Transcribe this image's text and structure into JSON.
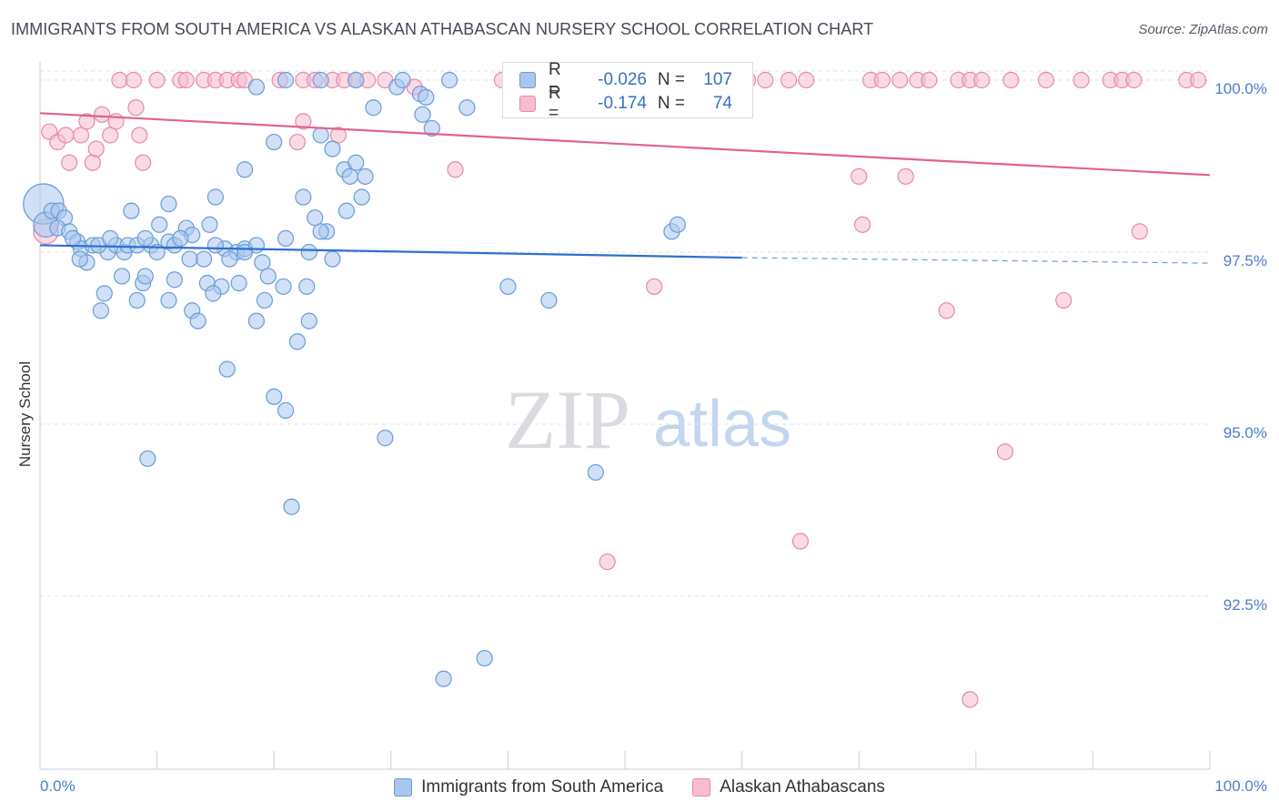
{
  "header": {
    "title": "IMMIGRANTS FROM SOUTH AMERICA VS ALASKAN ATHABASCAN NURSERY SCHOOL CORRELATION CHART",
    "source": "Source: ZipAtlas.com"
  },
  "watermark": {
    "zip": "ZIP",
    "atlas": "atlas"
  },
  "stats": {
    "series1": {
      "r_label": "R =",
      "r_value": "-0.026",
      "n_label": "N =",
      "n_value": "107"
    },
    "series2": {
      "r_label": "R =",
      "r_value": "-0.174",
      "n_label": "N =",
      "n_value": "74"
    }
  },
  "legend": {
    "series1": "Immigrants from South America",
    "series2": "Alaskan Athabascans"
  },
  "colors": {
    "blue_fill": "#a9c6ee",
    "blue_stroke": "#6b9bd8",
    "blue_line": "#2f6fcf",
    "pink_fill": "#f6bcd0",
    "pink_stroke": "#e889a8",
    "pink_line": "#e0628e",
    "grid": "#dde1e7",
    "axis": "#c9ced6"
  },
  "chart_data": {
    "type": "scatter",
    "title": "IMMIGRANTS FROM SOUTH AMERICA VS ALASKAN ATHABASCAN NURSERY SCHOOL CORRELATION CHART",
    "xlabel": "",
    "ylabel": "Nursery School",
    "xlim": [
      0,
      100
    ],
    "ylim": [
      90.2,
      100.3
    ],
    "x_tick_labels": [
      "0.0%",
      "100.0%"
    ],
    "y_ticks": [
      {
        "value": 100.0,
        "label": "100.0%"
      },
      {
        "value": 97.5,
        "label": "97.5%"
      },
      {
        "value": 95.0,
        "label": "95.0%"
      },
      {
        "value": 92.5,
        "label": "92.5%"
      }
    ],
    "grid": "horizontal dashed",
    "legend_position": "bottom",
    "series": [
      {
        "name": "Immigrants from South America",
        "color": "#a9c6ee",
        "trend": {
          "x": [
            0,
            60
          ],
          "y": [
            97.6,
            97.42
          ],
          "dashed_to": [
            100,
            97.34
          ]
        },
        "points": [
          [
            0.3,
            98.2,
            2.6
          ],
          [
            0.5,
            97.9,
            1.6
          ],
          [
            1.0,
            98.1,
            1.0
          ],
          [
            1.6,
            98.1,
            1.0
          ],
          [
            2.1,
            98.0,
            1.0
          ],
          [
            1.5,
            97.85,
            1.0
          ],
          [
            2.5,
            97.8,
            1.0
          ],
          [
            3.2,
            97.65,
            1.0
          ],
          [
            3.5,
            97.55,
            1.0
          ],
          [
            4.5,
            97.6,
            1.0
          ],
          [
            5.8,
            97.5,
            1.0
          ],
          [
            6.5,
            97.6,
            1.0
          ],
          [
            7.2,
            97.5,
            1.0
          ],
          [
            7.5,
            97.6,
            1.0
          ],
          [
            4.0,
            97.35,
            1.0
          ],
          [
            3.4,
            97.4,
            1.0
          ],
          [
            8.3,
            97.6,
            1.0
          ],
          [
            9.5,
            97.6,
            1.0
          ],
          [
            10.2,
            97.9,
            1.0
          ],
          [
            11.0,
            97.65,
            1.0
          ],
          [
            11.5,
            97.6,
            1.0
          ],
          [
            12.5,
            97.85,
            1.0
          ],
          [
            13.0,
            97.75,
            1.0
          ],
          [
            14.5,
            97.9,
            1.0
          ],
          [
            15.8,
            97.55,
            1.0
          ],
          [
            16.8,
            97.5,
            1.0
          ],
          [
            17.5,
            97.55,
            1.0
          ],
          [
            18.5,
            97.6,
            1.0
          ],
          [
            19.0,
            97.35,
            1.0
          ],
          [
            16.2,
            97.4,
            1.0
          ],
          [
            14.0,
            97.4,
            1.0
          ],
          [
            12.8,
            97.4,
            1.0
          ],
          [
            7.0,
            97.15,
            1.0
          ],
          [
            8.8,
            97.05,
            1.0
          ],
          [
            9.0,
            97.15,
            1.0
          ],
          [
            11.5,
            97.1,
            1.0
          ],
          [
            14.3,
            97.05,
            1.0
          ],
          [
            15.5,
            97.0,
            1.0
          ],
          [
            17.0,
            97.05,
            1.0
          ],
          [
            19.5,
            97.15,
            1.0
          ],
          [
            20.8,
            97.0,
            1.0
          ],
          [
            22.8,
            97.0,
            1.0
          ],
          [
            5.5,
            96.9,
            1.0
          ],
          [
            8.3,
            96.8,
            1.0
          ],
          [
            11.0,
            96.8,
            1.0
          ],
          [
            14.8,
            96.9,
            1.0
          ],
          [
            19.2,
            96.8,
            1.0
          ],
          [
            13.0,
            96.65,
            1.0
          ],
          [
            13.5,
            96.5,
            1.0
          ],
          [
            18.5,
            96.5,
            1.0
          ],
          [
            5.2,
            96.65,
            1.0
          ],
          [
            23.0,
            96.5,
            1.0
          ],
          [
            22.0,
            96.2,
            1.0
          ],
          [
            16.0,
            95.8,
            1.0
          ],
          [
            20.0,
            95.4,
            1.0
          ],
          [
            21.0,
            95.2,
            1.0
          ],
          [
            9.2,
            94.5,
            1.0
          ],
          [
            21.5,
            93.8,
            1.0
          ],
          [
            29.5,
            94.8,
            1.0
          ],
          [
            40.0,
            97.0,
            1.0
          ],
          [
            43.5,
            96.8,
            1.0
          ],
          [
            47.5,
            94.3,
            1.0
          ],
          [
            54.0,
            97.8,
            1.0
          ],
          [
            54.5,
            97.9,
            1.0
          ],
          [
            38.0,
            91.6,
            1.0
          ],
          [
            34.5,
            91.3,
            1.0
          ],
          [
            7.8,
            98.1,
            1.0
          ],
          [
            11.0,
            98.2,
            1.0
          ],
          [
            15.0,
            98.3,
            1.0
          ],
          [
            17.5,
            98.7,
            1.0
          ],
          [
            20.0,
            99.1,
            1.0
          ],
          [
            22.5,
            98.3,
            1.0
          ],
          [
            24.0,
            99.2,
            1.0
          ],
          [
            25.0,
            99.0,
            1.0
          ],
          [
            26.0,
            98.7,
            1.0
          ],
          [
            26.5,
            98.6,
            1.0
          ],
          [
            27.0,
            98.8,
            1.0
          ],
          [
            27.5,
            98.3,
            1.0
          ],
          [
            27.8,
            98.6,
            1.0
          ],
          [
            26.2,
            98.1,
            1.0
          ],
          [
            24.5,
            97.8,
            1.0
          ],
          [
            24.0,
            97.8,
            1.0
          ],
          [
            21.0,
            97.7,
            1.0
          ],
          [
            23.0,
            97.5,
            1.0
          ],
          [
            25.0,
            97.4,
            1.0
          ],
          [
            28.5,
            99.6,
            1.0
          ],
          [
            30.5,
            99.9,
            1.0
          ],
          [
            32.5,
            99.8,
            1.0
          ],
          [
            32.7,
            99.5,
            1.0
          ],
          [
            33.0,
            99.75,
            1.0
          ],
          [
            33.5,
            99.3,
            1.0
          ],
          [
            36.5,
            99.6,
            1.0
          ],
          [
            35.0,
            100.0,
            1.0
          ],
          [
            27.0,
            100.0,
            1.0
          ],
          [
            24.0,
            100.0,
            1.0
          ],
          [
            18.5,
            99.9,
            1.0
          ],
          [
            21.0,
            100.0,
            1.0
          ],
          [
            31.0,
            100.0,
            1.0
          ],
          [
            2.8,
            97.7,
            1.0
          ],
          [
            5.0,
            97.6,
            1.0
          ],
          [
            6.0,
            97.7,
            1.0
          ],
          [
            9.0,
            97.7,
            1.0
          ],
          [
            12.0,
            97.7,
            1.0
          ],
          [
            17.5,
            97.5,
            1.0
          ],
          [
            15.0,
            97.6,
            1.0
          ],
          [
            23.5,
            98.0,
            1.0
          ],
          [
            10.0,
            97.5,
            1.0
          ]
        ]
      },
      {
        "name": "Alaskan Athabascans",
        "color": "#f6bcd0",
        "trend": {
          "x": [
            0,
            100
          ],
          "y": [
            99.52,
            98.62
          ]
        },
        "points": [
          [
            0.5,
            97.8,
            1.6
          ],
          [
            0.8,
            99.25,
            1.0
          ],
          [
            1.5,
            99.1,
            1.0
          ],
          [
            2.2,
            99.2,
            1.0
          ],
          [
            2.5,
            98.8,
            1.0
          ],
          [
            3.5,
            99.2,
            1.0
          ],
          [
            4.0,
            99.4,
            1.0
          ],
          [
            4.5,
            98.8,
            1.0
          ],
          [
            4.8,
            99.0,
            1.0
          ],
          [
            5.3,
            99.5,
            1.0
          ],
          [
            6.0,
            99.2,
            1.0
          ],
          [
            6.5,
            99.4,
            1.0
          ],
          [
            8.5,
            99.2,
            1.0
          ],
          [
            8.8,
            98.8,
            1.0
          ],
          [
            8.2,
            99.6,
            1.0
          ],
          [
            22.0,
            99.1,
            1.0
          ],
          [
            22.5,
            99.4,
            1.0
          ],
          [
            25.5,
            99.2,
            1.0
          ],
          [
            35.5,
            98.7,
            1.0
          ],
          [
            70.0,
            98.6,
            1.0
          ],
          [
            74.0,
            98.6,
            1.0
          ],
          [
            70.3,
            97.9,
            1.0
          ],
          [
            94.0,
            97.8,
            1.0
          ],
          [
            52.5,
            97.0,
            1.0
          ],
          [
            77.5,
            96.65,
            1.0
          ],
          [
            87.5,
            96.8,
            1.0
          ],
          [
            82.5,
            94.6,
            1.0
          ],
          [
            48.5,
            93.0,
            1.0
          ],
          [
            65.0,
            93.3,
            1.0
          ],
          [
            79.5,
            91.0,
            1.0
          ],
          [
            6.8,
            100.0,
            1.0
          ],
          [
            8.0,
            100.0,
            1.0
          ],
          [
            10.0,
            100.0,
            1.0
          ],
          [
            12.0,
            100.0,
            1.0
          ],
          [
            12.5,
            100.0,
            1.0
          ],
          [
            14.0,
            100.0,
            1.0
          ],
          [
            15.0,
            100.0,
            1.0
          ],
          [
            16.0,
            100.0,
            1.0
          ],
          [
            17.0,
            100.0,
            1.0
          ],
          [
            17.5,
            100.0,
            1.0
          ],
          [
            20.5,
            100.0,
            1.0
          ],
          [
            22.5,
            100.0,
            1.0
          ],
          [
            23.5,
            100.0,
            1.0
          ],
          [
            25.0,
            100.0,
            1.0
          ],
          [
            26.0,
            100.0,
            1.0
          ],
          [
            27.0,
            100.0,
            1.0
          ],
          [
            28.0,
            100.0,
            1.0
          ],
          [
            29.5,
            100.0,
            1.0
          ],
          [
            32.0,
            99.9,
            1.0
          ],
          [
            39.5,
            100.0,
            1.0
          ],
          [
            41.0,
            100.0,
            1.0
          ],
          [
            42.0,
            100.0,
            1.0
          ],
          [
            43.0,
            100.0,
            1.0
          ],
          [
            44.5,
            100.0,
            1.0
          ],
          [
            60.5,
            100.0,
            1.0
          ],
          [
            62.0,
            100.0,
            1.0
          ],
          [
            64.0,
            100.0,
            1.0
          ],
          [
            65.5,
            100.0,
            1.0
          ],
          [
            71.0,
            100.0,
            1.0
          ],
          [
            72.0,
            100.0,
            1.0
          ],
          [
            73.5,
            100.0,
            1.0
          ],
          [
            75.0,
            100.0,
            1.0
          ],
          [
            76.0,
            100.0,
            1.0
          ],
          [
            78.5,
            100.0,
            1.0
          ],
          [
            79.5,
            100.0,
            1.0
          ],
          [
            80.5,
            100.0,
            1.0
          ],
          [
            83.0,
            100.0,
            1.0
          ],
          [
            86.0,
            100.0,
            1.0
          ],
          [
            89.0,
            100.0,
            1.0
          ],
          [
            91.5,
            100.0,
            1.0
          ],
          [
            92.5,
            100.0,
            1.0
          ],
          [
            93.5,
            100.0,
            1.0
          ],
          [
            98.0,
            100.0,
            1.0
          ],
          [
            99.0,
            100.0,
            1.0
          ]
        ]
      }
    ]
  }
}
